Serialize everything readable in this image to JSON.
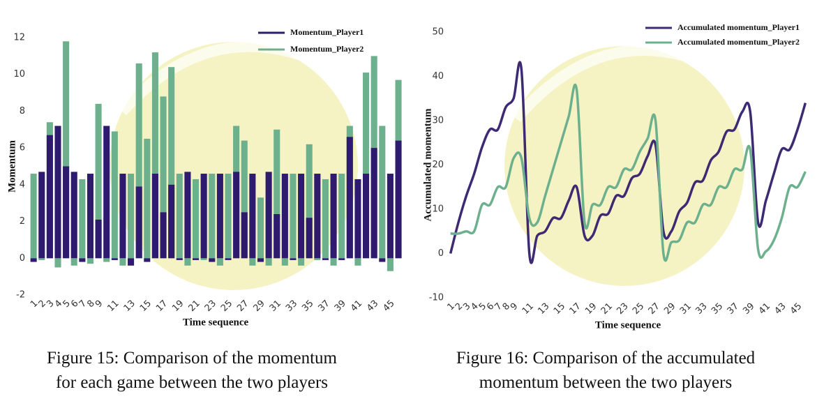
{
  "chart_data": [
    {
      "type": "bar",
      "caption": "Figure 15: Comparison of the momentum for each game between the two players",
      "xlabel": "Time sequence",
      "ylabel": "Momentum",
      "legend": "upper right",
      "x": [
        1,
        2,
        3,
        4,
        5,
        6,
        7,
        8,
        9,
        10,
        11,
        12,
        13,
        14,
        15,
        16,
        17,
        18,
        19,
        20,
        21,
        22,
        23,
        24,
        25,
        26,
        27,
        28,
        29,
        30,
        31,
        32,
        33,
        34,
        35,
        36,
        37,
        38,
        39,
        40,
        41,
        42,
        43,
        44,
        45,
        46
      ],
      "xlim": [
        0.3,
        46.6
      ],
      "xticks": [
        1,
        2,
        3,
        4,
        5,
        6,
        7,
        8,
        9,
        11,
        13,
        15,
        17,
        19,
        21,
        23,
        25,
        27,
        29,
        31,
        33,
        35,
        37,
        39,
        41,
        43,
        45
      ],
      "ylim": [
        -2,
        12
      ],
      "yticks": [
        -2,
        0,
        2,
        4,
        6,
        8,
        10,
        12
      ],
      "series": [
        {
          "name": "Momentum_Player2",
          "color": "#6db08e",
          "values": [
            4.6,
            -0.1,
            7.4,
            -0.5,
            11.8,
            -0.4,
            4.3,
            -0.3,
            8.4,
            -0.2,
            6.9,
            -0.4,
            4.6,
            10.6,
            6.5,
            11.2,
            8.8,
            10.4,
            4.6,
            -0.4,
            4.3,
            -0.1,
            4.6,
            -0.4,
            4.6,
            7.2,
            6.4,
            -0.4,
            3.3,
            -0.4,
            7.0,
            -0.4,
            4.6,
            -0.4,
            6.2,
            -0.1,
            4.3,
            -0.4,
            4.6,
            7.2,
            -0.4,
            10.1,
            11.0,
            7.2,
            -0.7,
            9.7
          ]
        },
        {
          "name": "Momentum_Player1",
          "color": "#2e1a6e",
          "values": [
            -0.2,
            4.7,
            6.7,
            7.2,
            5.0,
            4.7,
            -0.2,
            4.6,
            2.1,
            7.2,
            -0.1,
            4.6,
            -0.4,
            3.9,
            -0.2,
            4.6,
            2.5,
            4.0,
            -0.1,
            4.7,
            -0.1,
            4.6,
            -0.2,
            4.6,
            -0.1,
            4.7,
            2.5,
            4.6,
            -0.2,
            4.7,
            2.4,
            4.6,
            -0.1,
            4.6,
            2.2,
            4.6,
            -0.1,
            4.6,
            -0.1,
            6.6,
            4.3,
            4.6,
            6.0,
            -0.2,
            4.6,
            6.4
          ]
        }
      ]
    },
    {
      "type": "line",
      "caption": "Figure 16: Comparison of the accumulated momentum between the two players",
      "xlabel": "Time sequence",
      "ylabel": "Accumulated  momentum",
      "legend": "upper right",
      "x": [
        1,
        2,
        3,
        4,
        5,
        6,
        7,
        8,
        9,
        10,
        11,
        12,
        13,
        14,
        15,
        16,
        17,
        18,
        19,
        20,
        21,
        22,
        23,
        24,
        25,
        26,
        27,
        28,
        29,
        30,
        31,
        32,
        33,
        34,
        35,
        36,
        37,
        38,
        39,
        40,
        41,
        42,
        43,
        44,
        45,
        46
      ],
      "xlim": [
        0.5,
        46.5
      ],
      "xticks": [
        1,
        2,
        3,
        4,
        5,
        6,
        7,
        8,
        9,
        11,
        13,
        15,
        17,
        19,
        21,
        23,
        25,
        27,
        29,
        31,
        33,
        35,
        37,
        39,
        41,
        43,
        45
      ],
      "ylim": [
        -10,
        50
      ],
      "yticks": [
        -10,
        0,
        10,
        20,
        30,
        40,
        50
      ],
      "series": [
        {
          "name": "Accumulated momentum_Player1",
          "color": "#3d2a73",
          "values": [
            0,
            7,
            13,
            18,
            24,
            28,
            28,
            33,
            35,
            41.5,
            0,
            4,
            5,
            8,
            8,
            12,
            15,
            4,
            4,
            8.5,
            9,
            13,
            13,
            17,
            18,
            22,
            24.5,
            5,
            5,
            9.5,
            11.5,
            16,
            16.5,
            21,
            23,
            27.5,
            28,
            32,
            32,
            7,
            12,
            18,
            23.5,
            23.5,
            28,
            34
          ]
        },
        {
          "name": "Accumulated momentum_Player2",
          "color": "#6db08e",
          "values": [
            4.5,
            4.5,
            5,
            5,
            11,
            11,
            15,
            15,
            21.5,
            21.5,
            8,
            7,
            13,
            19,
            25,
            31,
            37,
            7,
            11,
            11,
            15,
            15,
            19,
            19,
            23,
            26,
            30,
            0,
            2.5,
            3,
            7,
            7,
            11,
            11,
            15,
            15,
            19,
            19,
            23.5,
            1,
            0.5,
            3,
            8,
            15,
            15,
            18.5
          ]
        }
      ]
    }
  ]
}
